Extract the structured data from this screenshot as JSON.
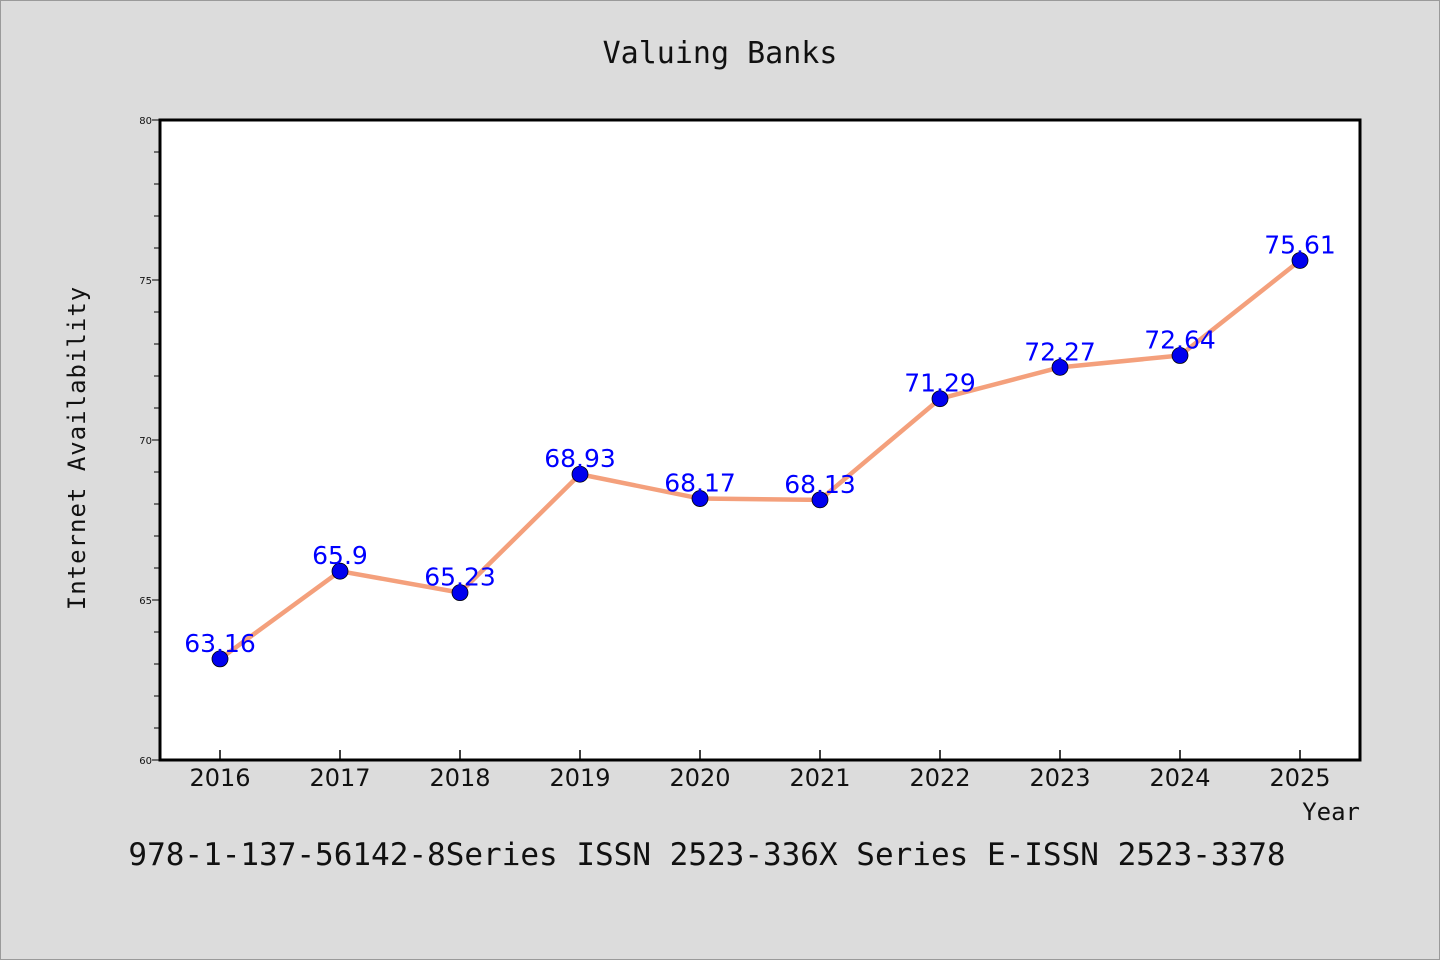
{
  "chart_data": {
    "type": "line",
    "title": "Valuing Banks",
    "xlabel": "Year",
    "ylabel": "Internet Availability",
    "x": [
      "2016",
      "2017",
      "2018",
      "2019",
      "2020",
      "2021",
      "2022",
      "2023",
      "2024",
      "2025"
    ],
    "values": [
      63.16,
      65.9,
      65.23,
      68.93,
      68.17,
      68.13,
      71.29,
      72.27,
      72.64,
      75.61
    ],
    "data_labels": [
      "63.16",
      "65.9",
      "65.23",
      "68.93",
      "68.17",
      "68.13",
      "71.29",
      "72.27",
      "72.64",
      "75.61"
    ],
    "ylim": [
      60,
      80
    ],
    "yticks": [
      60,
      65,
      70,
      75,
      80
    ],
    "grid": false,
    "line_color": "#f4a07c",
    "marker_color": "#0000ee",
    "label_color": "#0000ff"
  },
  "footer": "978-1-137-56142-8Series ISSN 2523-336X Series E-ISSN 2523-3378"
}
